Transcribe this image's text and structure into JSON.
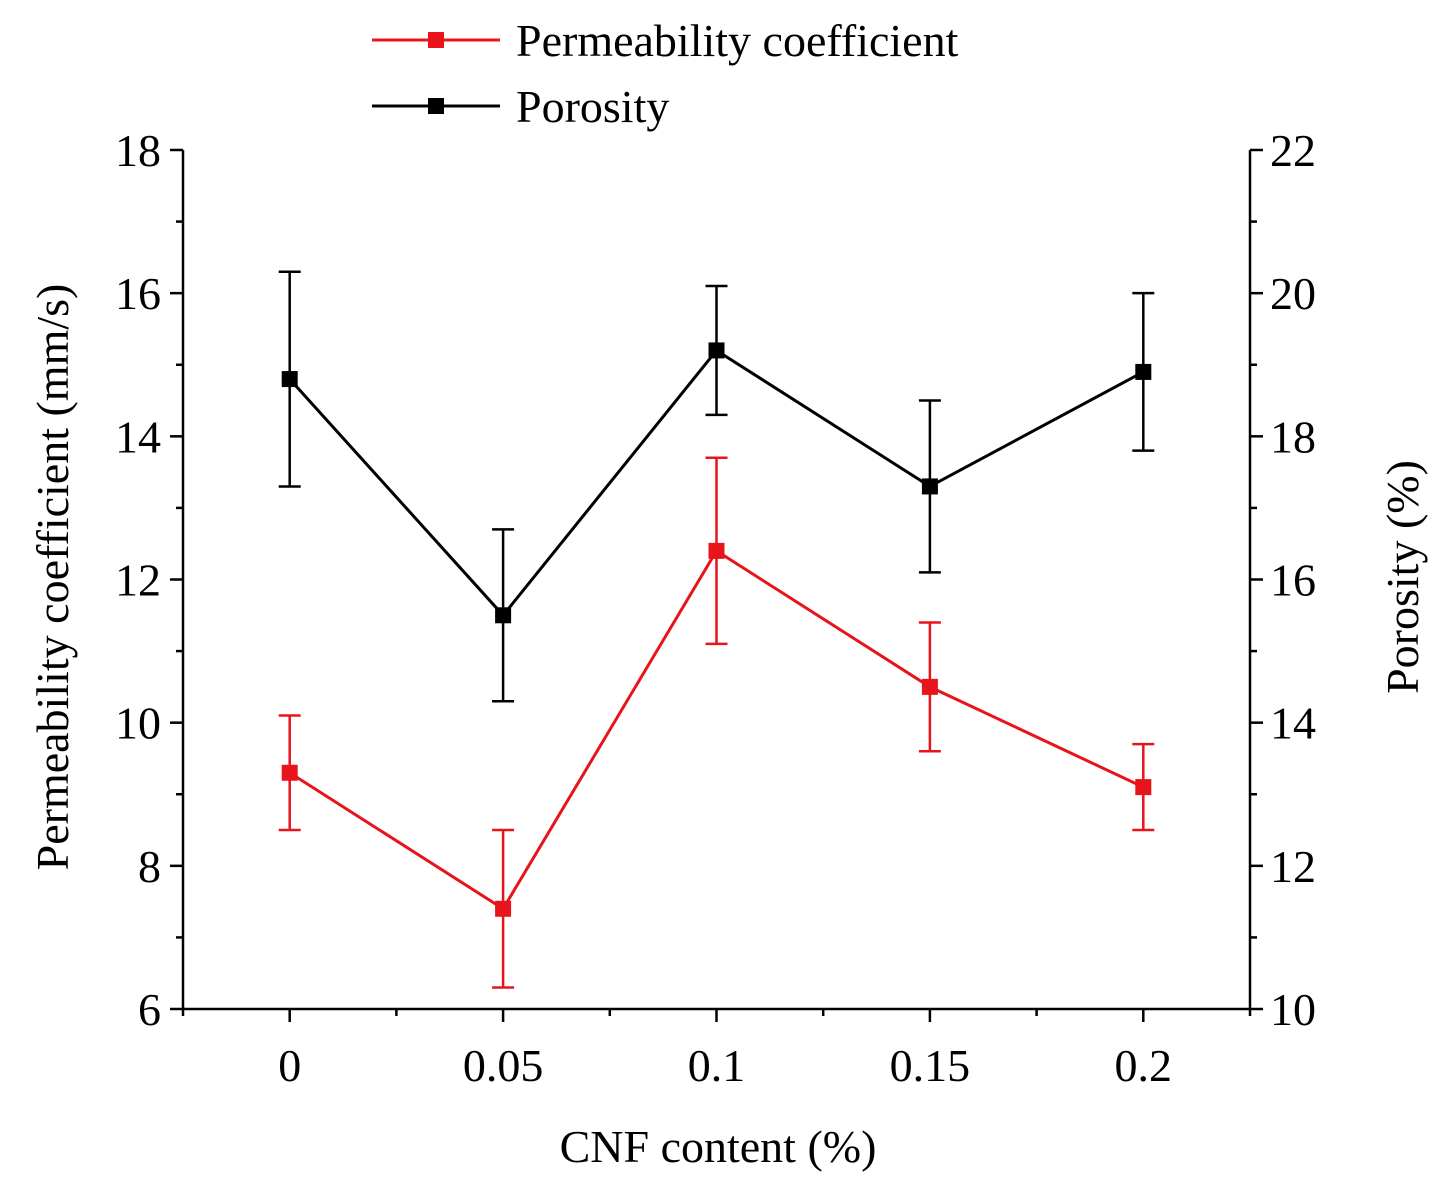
{
  "chart_data": {
    "type": "line",
    "x": [
      0,
      0.05,
      0.1,
      0.15,
      0.2
    ],
    "x_tick_labels": [
      "0",
      "0.05",
      "0.1",
      "0.15",
      "0.2"
    ],
    "xlabel": "CNF content (%)",
    "xlim": [
      -0.025,
      0.225
    ],
    "y_left": {
      "label": "Permeability coefficient (mm/s)",
      "lim": [
        6,
        18
      ],
      "ticks": [
        6,
        8,
        10,
        12,
        14,
        16,
        18
      ],
      "tick_labels": [
        "6",
        "8",
        "10",
        "12",
        "14",
        "16",
        "18"
      ]
    },
    "y_right": {
      "label": "Porosity (%)",
      "lim": [
        10,
        22
      ],
      "ticks": [
        10,
        12,
        14,
        16,
        18,
        20,
        22
      ],
      "tick_labels": [
        "10",
        "12",
        "14",
        "16",
        "18",
        "20",
        "22"
      ]
    },
    "series": [
      {
        "name": "Permeability coefficient",
        "axis": "left",
        "color": "#e8141c",
        "marker": "square",
        "values": [
          9.3,
          7.4,
          12.4,
          10.5,
          9.1
        ],
        "error_low": [
          8.5,
          6.3,
          11.1,
          9.6,
          8.5
        ],
        "error_high": [
          10.1,
          8.5,
          13.7,
          11.4,
          9.7
        ]
      },
      {
        "name": "Porosity",
        "axis": "right",
        "color": "#000000",
        "marker": "square",
        "values": [
          18.8,
          15.5,
          19.2,
          17.3,
          18.9
        ],
        "error_low": [
          17.3,
          14.3,
          18.3,
          16.1,
          17.8
        ],
        "error_high": [
          20.3,
          16.7,
          20.1,
          18.5,
          20.0
        ]
      }
    ],
    "legend": "top-center",
    "grid": false
  }
}
